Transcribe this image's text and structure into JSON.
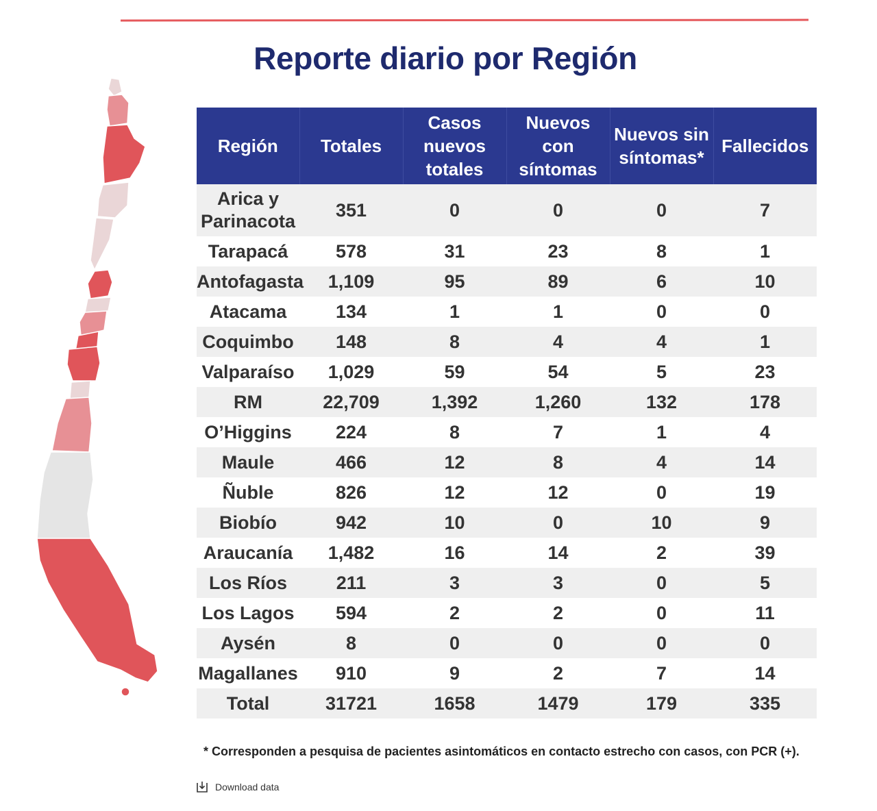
{
  "title": "Reporte diario por Región",
  "table": {
    "headers": [
      "Región",
      "Totales",
      "Casos nuevos totales",
      "Nuevos con síntomas",
      "Nuevos sin síntomas*",
      "Fallecidos"
    ],
    "rows": [
      [
        "Arica y Parinacota",
        "351",
        "0",
        "0",
        "0",
        "7"
      ],
      [
        "Tarapacá",
        "578",
        "31",
        "23",
        "8",
        "1"
      ],
      [
        "Antofagasta",
        "1,109",
        "95",
        "89",
        "6",
        "10"
      ],
      [
        "Atacama",
        "134",
        "1",
        "1",
        "0",
        "0"
      ],
      [
        "Coquimbo",
        "148",
        "8",
        "4",
        "4",
        "1"
      ],
      [
        "Valparaíso",
        "1,029",
        "59",
        "54",
        "5",
        "23"
      ],
      [
        "RM",
        "22,709",
        "1,392",
        "1,260",
        "132",
        "178"
      ],
      [
        "O’Higgins",
        "224",
        "8",
        "7",
        "1",
        "4"
      ],
      [
        "Maule",
        "466",
        "12",
        "8",
        "4",
        "14"
      ],
      [
        "Ñuble",
        "826",
        "12",
        "12",
        "0",
        "19"
      ],
      [
        "Biobío",
        "942",
        "10",
        "0",
        "10",
        "9"
      ],
      [
        "Araucanía",
        "1,482",
        "16",
        "14",
        "2",
        "39"
      ],
      [
        "Los Ríos",
        "211",
        "3",
        "3",
        "0",
        "5"
      ],
      [
        "Los Lagos",
        "594",
        "2",
        "2",
        "0",
        "11"
      ],
      [
        "Aysén",
        "8",
        "0",
        "0",
        "0",
        "0"
      ],
      [
        "Magallanes",
        "910",
        "9",
        "2",
        "7",
        "14"
      ],
      [
        "Total",
        "31721",
        "1658",
        "1479",
        "179",
        "335"
      ]
    ]
  },
  "footnote": "* Corresponden a pesquisa de pacientes asintomáticos en contacto estrecho con casos, con PCR (+).",
  "download": {
    "label": "Download data",
    "icon": "download-icon"
  },
  "colors": {
    "header_bg": "#2b3990",
    "title": "#1e2a6e",
    "accent_rule": "#e5585b",
    "map_dark": "#e0555a",
    "map_mid": "#e79095",
    "map_light": "#ead6d7",
    "map_neutral": "#e5e5e5"
  }
}
